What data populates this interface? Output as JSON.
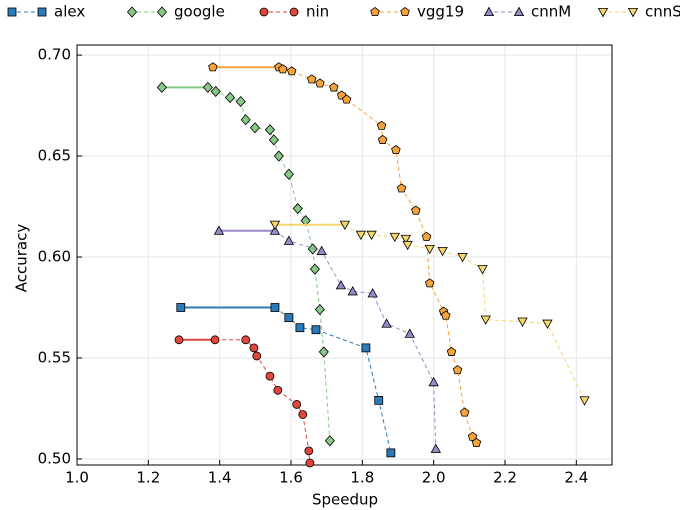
{
  "chart_data": {
    "type": "line",
    "x_label": "Speedup",
    "y_label": "Accuracy",
    "xlim": [
      1.0,
      2.5
    ],
    "ylim": [
      0.497,
      0.705
    ],
    "xticks": [
      {
        "value": 1.0,
        "label": "1.0"
      },
      1.2,
      1.4,
      1.6,
      1.8,
      {
        "value": 2.0,
        "label": "2.0"
      },
      2.2,
      2.4
    ],
    "yticks": [
      {
        "value": 0.5,
        "label": "0.50"
      },
      0.55,
      {
        "value": 0.6,
        "label": "0.60"
      },
      0.65,
      {
        "value": 0.7,
        "label": "0.70"
      }
    ],
    "grid": true,
    "legend": "top",
    "series": [
      {
        "name": "alex",
        "color": "#2b7bb9",
        "marker": "square",
        "x": [
          1.291,
          1.555,
          1.594,
          1.625,
          1.67,
          1.81,
          1.846,
          1.88
        ],
        "values": [
          0.575,
          0.575,
          0.57,
          0.565,
          0.564,
          0.555,
          0.529,
          0.503
        ]
      },
      {
        "name": "google",
        "color": "#88c988",
        "marker": "diamond",
        "x": [
          1.238,
          1.367,
          1.389,
          1.429,
          1.459,
          1.473,
          1.499,
          1.541,
          1.552,
          1.566,
          1.594,
          1.619,
          1.641,
          1.661,
          1.667,
          1.681,
          1.692,
          1.709
        ],
        "values": [
          0.684,
          0.684,
          0.682,
          0.679,
          0.677,
          0.668,
          0.664,
          0.663,
          0.658,
          0.65,
          0.641,
          0.624,
          0.618,
          0.604,
          0.594,
          0.574,
          0.553,
          0.509
        ]
      },
      {
        "name": "nin",
        "color": "#e0463c",
        "marker": "circle",
        "x": [
          1.286,
          1.387,
          1.473,
          1.496,
          1.504,
          1.541,
          1.563,
          1.616,
          1.633,
          1.65,
          1.653
        ],
        "values": [
          0.559,
          0.559,
          0.559,
          0.555,
          0.551,
          0.541,
          0.534,
          0.527,
          0.522,
          0.504,
          0.498
        ]
      },
      {
        "name": "vgg19",
        "color": "#f5a33b",
        "marker": "pentagon",
        "x": [
          1.381,
          1.566,
          1.577,
          1.602,
          1.658,
          1.681,
          1.72,
          1.742,
          1.756,
          1.854,
          1.857,
          1.894,
          1.91,
          1.95,
          1.98,
          1.989,
          2.028,
          2.034,
          2.05,
          2.067,
          2.087,
          2.109,
          2.12
        ],
        "values": [
          0.694,
          0.694,
          0.693,
          0.692,
          0.688,
          0.686,
          0.684,
          0.68,
          0.678,
          0.665,
          0.658,
          0.653,
          0.634,
          0.623,
          0.61,
          0.587,
          0.573,
          0.571,
          0.553,
          0.544,
          0.523,
          0.511,
          0.508
        ]
      },
      {
        "name": "cnnM",
        "color": "#9b88c9",
        "marker": "triangle",
        "x": [
          1.398,
          1.555,
          1.594,
          1.686,
          1.74,
          1.773,
          1.829,
          1.868,
          1.933,
          2.0,
          2.006
        ],
        "values": [
          0.613,
          0.613,
          0.608,
          0.603,
          0.586,
          0.583,
          0.582,
          0.567,
          0.562,
          0.538,
          0.505
        ]
      },
      {
        "name": "cnnS",
        "color": "#f6d66f",
        "marker": "triangle-down",
        "x": [
          1.555,
          1.751,
          1.796,
          1.826,
          1.891,
          1.922,
          1.927,
          1.989,
          2.025,
          2.081,
          2.137,
          2.146,
          2.249,
          2.319,
          2.423
        ],
        "values": [
          0.616,
          0.616,
          0.611,
          0.611,
          0.61,
          0.609,
          0.606,
          0.604,
          0.603,
          0.6,
          0.594,
          0.569,
          0.568,
          0.567,
          0.529
        ]
      }
    ]
  }
}
